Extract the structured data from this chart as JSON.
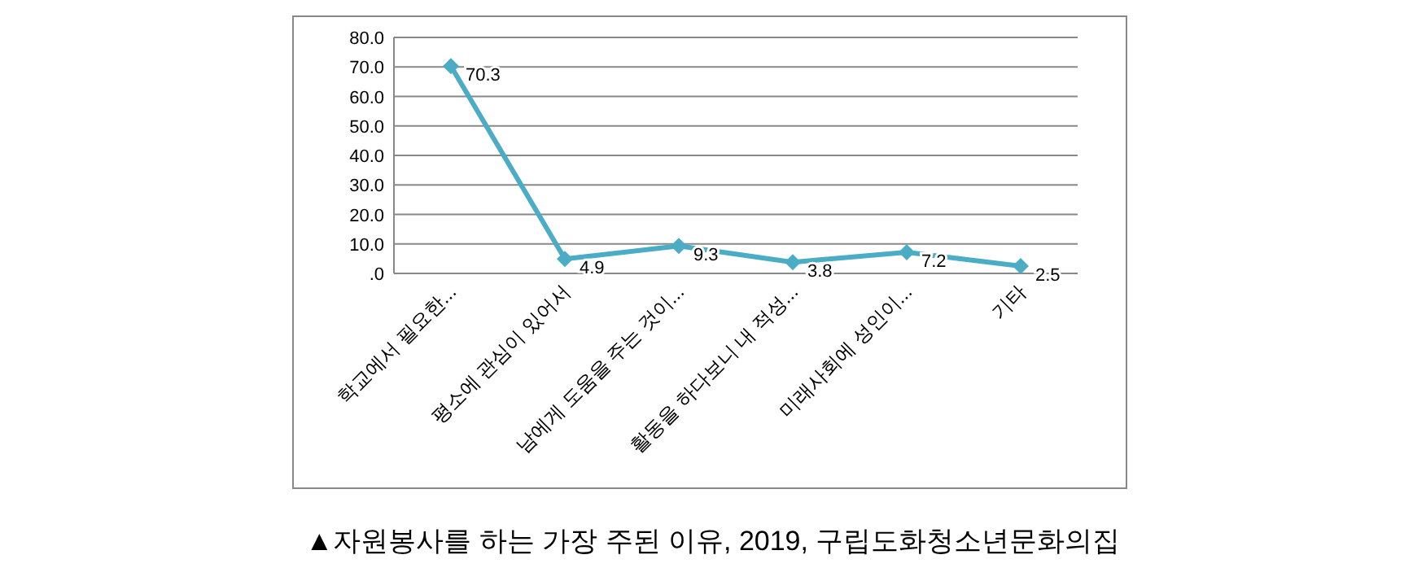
{
  "chart_data": {
    "type": "line",
    "categories": [
      "학교에서 필요한...",
      "평소에 관심이 있어서",
      "남에게 도움을 주는 것이...",
      "활동을 하다보니 내 적성...",
      "미래사회에 성인이...",
      "기타"
    ],
    "series": [
      {
        "color": "#4bacc6",
        "values": [
          70.3,
          4.9,
          9.3,
          3.8,
          7.2,
          2.5
        ]
      }
    ],
    "ylim": [
      0,
      80
    ],
    "yticks": [
      {
        "value": 0,
        "label": ".0"
      },
      {
        "value": 10,
        "label": "10.0"
      },
      {
        "value": 20,
        "label": "20.0"
      },
      {
        "value": 30,
        "label": "30.0"
      },
      {
        "value": 40,
        "label": "40.0"
      },
      {
        "value": 50,
        "label": "50.0"
      },
      {
        "value": 60,
        "label": "60.0"
      },
      {
        "value": 70,
        "label": "70.0"
      },
      {
        "value": 80,
        "label": "80.0"
      }
    ],
    "grid": "y",
    "marker": "diamond",
    "line_style": "solid",
    "data_labels": true,
    "annotations": [
      "▲자원봉사를 하는 가장 주된 이유, 2019, 구립도화청소년문화의집"
    ]
  }
}
